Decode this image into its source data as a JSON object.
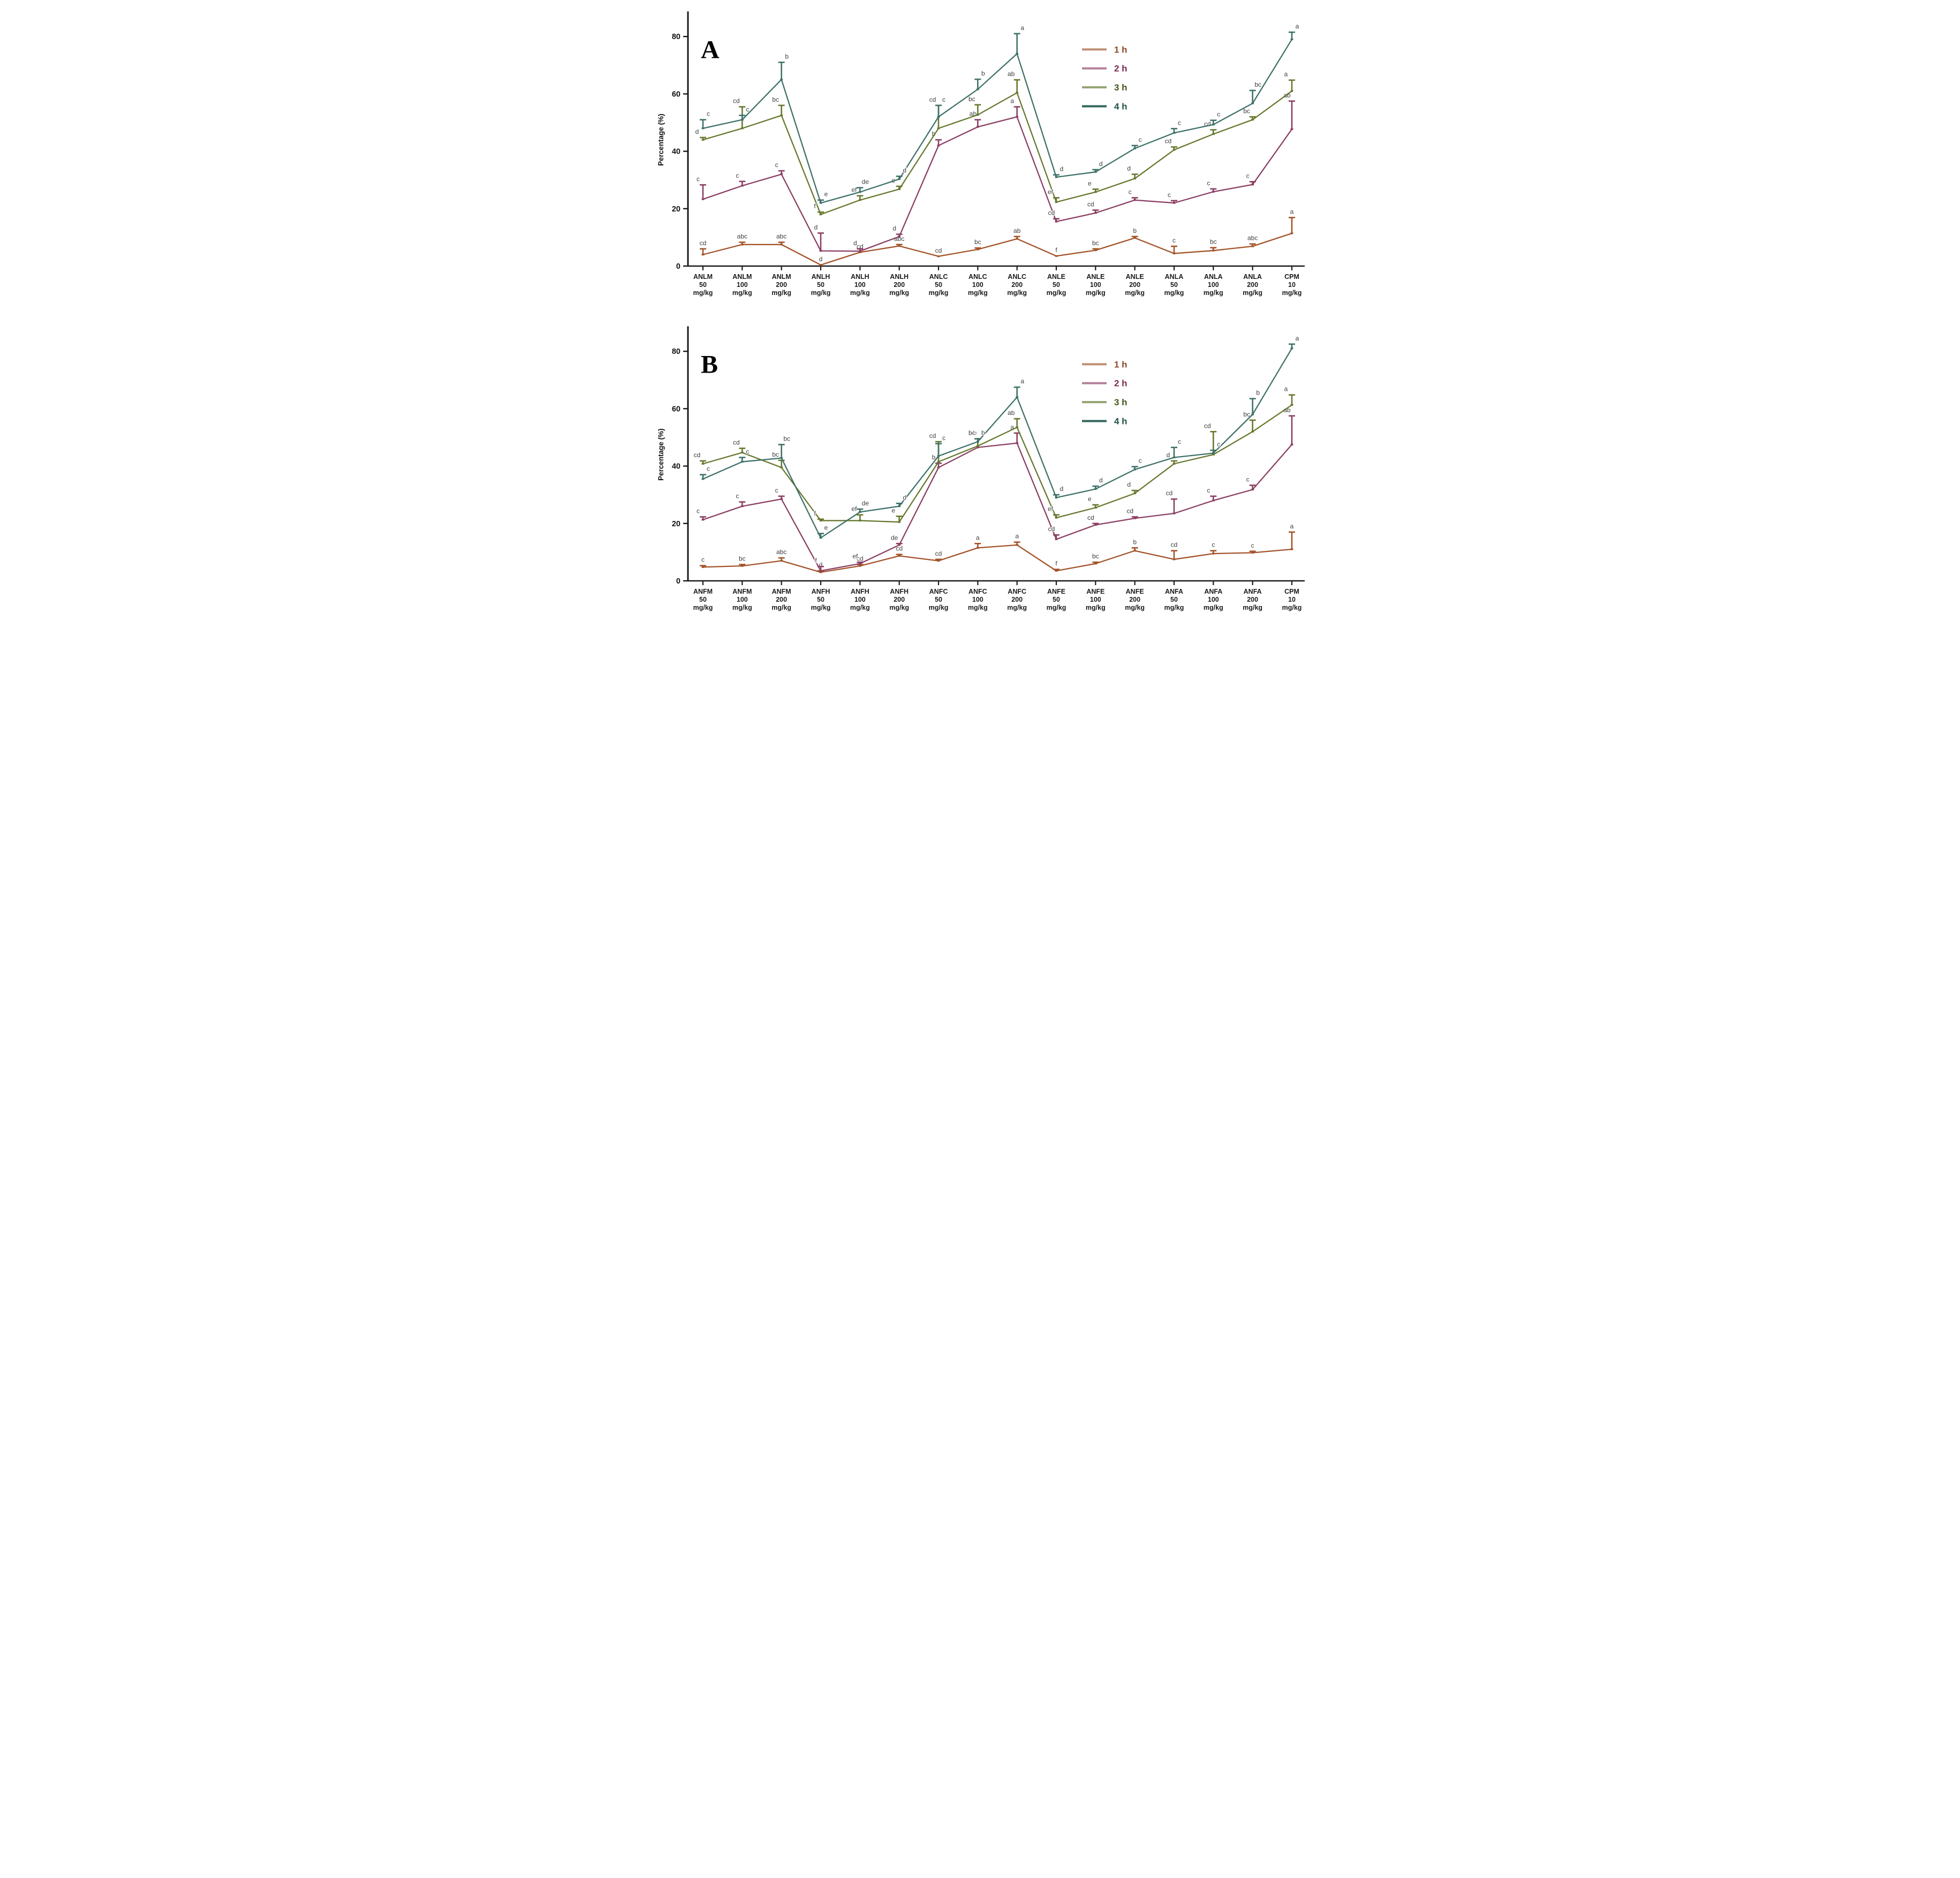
{
  "figure": {
    "background": "#ffffff",
    "letter_color": "#3d3d3d",
    "axis_color": "#1a1a1a"
  },
  "chart_data": [
    {
      "type": "line",
      "panel_label": "A",
      "ylabel": "Percentage (%)",
      "ylim": [
        0,
        88
      ],
      "yticks": [
        0,
        20,
        40,
        60,
        80
      ],
      "grid": false,
      "legend_position": "upper-right-inside",
      "legend": [
        {
          "label": "1 h",
          "swatch_color": "#BE8E72",
          "text_color": "#8C4A2A"
        },
        {
          "label": "2 h",
          "swatch_color": "#B38099",
          "text_color": "#7B2B52"
        },
        {
          "label": "3 h",
          "swatch_color": "#93A371",
          "text_color": "#3F5918"
        },
        {
          "label": "4 h",
          "swatch_color": "#32655C",
          "text_color": "#1F5348"
        }
      ],
      "categories": [
        [
          "ANLM",
          "50",
          "mg/kg"
        ],
        [
          "ANLM",
          "100",
          "mg/kg"
        ],
        [
          "ANLM",
          "200",
          "mg/kg"
        ],
        [
          "ANLH",
          "50",
          "mg/kg"
        ],
        [
          "ANLH",
          "100",
          "mg/kg"
        ],
        [
          "ANLH",
          "200",
          "mg/kg"
        ],
        [
          "ANLC",
          "50",
          "mg/kg"
        ],
        [
          "ANLC",
          "100",
          "mg/kg"
        ],
        [
          "ANLC",
          "200",
          "mg/kg"
        ],
        [
          "ANLE",
          "50",
          "mg/kg"
        ],
        [
          "ANLE",
          "100",
          "mg/kg"
        ],
        [
          "ANLE",
          "200",
          "mg/kg"
        ],
        [
          "ANLA",
          "50",
          "mg/kg"
        ],
        [
          "ANLA",
          "100",
          "mg/kg"
        ],
        [
          "ANLA",
          "200",
          "mg/kg"
        ],
        [
          "CPM",
          "10",
          "mg/kg"
        ]
      ],
      "series": [
        {
          "name": "1 h",
          "color": "#A35329",
          "values": [
            4,
            7.5,
            7.5,
            0.4,
            4.8,
            7,
            3.4,
            5.8,
            9.5,
            3.5,
            5.5,
            9.8,
            4.4,
            5.4,
            6.9,
            11.4
          ],
          "errors": [
            2,
            0.8,
            0.8,
            0,
            0,
            0.5,
            0,
            0.5,
            0.8,
            0,
            0.5,
            0.5,
            2.5,
            1,
            0.8,
            5.5
          ],
          "letters": [
            "cd",
            "abc",
            "abc",
            "d",
            "cd",
            "abc",
            "cd",
            "bc",
            "ab",
            "f",
            "bc",
            "b",
            "c",
            "bc",
            "abc",
            "a"
          ]
        },
        {
          "name": "2 h",
          "color": "#8B3E63",
          "values": [
            23.3,
            28,
            32,
            5.3,
            5.2,
            10.3,
            42,
            48.5,
            52,
            15.5,
            18.5,
            23,
            22,
            25.9,
            28.4,
            47.7
          ],
          "errors": [
            5,
            1.5,
            1.2,
            6.2,
            0.8,
            0.8,
            2,
            2.5,
            3.5,
            1,
            1,
            0.8,
            0.8,
            1,
            1,
            9.8
          ],
          "letters": [
            "c",
            "c",
            "c",
            "d",
            "d",
            "d",
            "b",
            "ab",
            "a",
            "cd",
            "cd",
            "c",
            "c",
            "c",
            "c",
            "ab"
          ]
        },
        {
          "name": "3 h",
          "color": "#66782E",
          "values": [
            44,
            48,
            52.5,
            18,
            23,
            26.8,
            48,
            52.7,
            60.4,
            22.3,
            25.8,
            30.5,
            40.5,
            46,
            51,
            61
          ],
          "errors": [
            0.8,
            7.5,
            3.5,
            0.8,
            1.5,
            1,
            8,
            3.5,
            4.5,
            1.5,
            1,
            1.5,
            1,
            1.5,
            1,
            3.8
          ],
          "letters": [
            "d",
            "cd",
            "bc",
            "f",
            "ef",
            "e",
            "cd",
            "bc",
            "ab",
            "ef",
            "e",
            "d",
            "cd",
            "cd",
            "bc",
            "a"
          ]
        },
        {
          "name": "4 h",
          "color": "#3E7168",
          "values": [
            48,
            51,
            65,
            22,
            25.8,
            30.3,
            52,
            61.6,
            74,
            31,
            32.8,
            41,
            46.4,
            49.3,
            56.7,
            79
          ],
          "errors": [
            3,
            1.5,
            6,
            1,
            1.5,
            1,
            4,
            3.5,
            7,
            0.8,
            0.8,
            1,
            1.5,
            1.5,
            4.5,
            2.5
          ],
          "letters": [
            "c",
            "c",
            "b",
            "e",
            "de",
            "d",
            "c",
            "b",
            "a",
            "d",
            "d",
            "c",
            "c",
            "c",
            "bc",
            "a"
          ]
        }
      ]
    },
    {
      "type": "line",
      "panel_label": "B",
      "ylabel": "Percentage (%)",
      "ylim": [
        0,
        88
      ],
      "yticks": [
        0,
        20,
        40,
        60,
        80
      ],
      "grid": false,
      "legend_position": "upper-right-inside",
      "legend": [
        {
          "label": "1 h",
          "swatch_color": "#BE8E72",
          "text_color": "#8C4A2A"
        },
        {
          "label": "2 h",
          "swatch_color": "#B38099",
          "text_color": "#7B2B52"
        },
        {
          "label": "3 h",
          "swatch_color": "#93A371",
          "text_color": "#3F5918"
        },
        {
          "label": "4 h",
          "swatch_color": "#32655C",
          "text_color": "#1F5348"
        }
      ],
      "categories": [
        [
          "ANFM",
          "50",
          "mg/kg"
        ],
        [
          "ANFM",
          "100",
          "mg/kg"
        ],
        [
          "ANFM",
          "200",
          "mg/kg"
        ],
        [
          "ANFH",
          "50",
          "mg/kg"
        ],
        [
          "ANFH",
          "100",
          "mg/kg"
        ],
        [
          "ANFH",
          "200",
          "mg/kg"
        ],
        [
          "ANFC",
          "50",
          "mg/kg"
        ],
        [
          "ANFC",
          "100",
          "mg/kg"
        ],
        [
          "ANFC",
          "200",
          "mg/kg"
        ],
        [
          "ANFE",
          "50",
          "mg/kg"
        ],
        [
          "ANFE",
          "100",
          "mg/kg"
        ],
        [
          "ANFE",
          "200",
          "mg/kg"
        ],
        [
          "ANFA",
          "50",
          "mg/kg"
        ],
        [
          "ANFA",
          "100",
          "mg/kg"
        ],
        [
          "ANFA",
          "200",
          "mg/kg"
        ],
        [
          "CPM",
          "10",
          "mg/kg"
        ]
      ],
      "series": [
        {
          "name": "1 h",
          "color": "#A35329",
          "values": [
            4.8,
            5.2,
            7,
            3,
            5.2,
            8.7,
            7,
            11.5,
            12.5,
            3.5,
            6,
            10.5,
            7.5,
            9.5,
            9.8,
            11
          ],
          "errors": [
            0.5,
            0.5,
            1,
            0.5,
            0.5,
            0.5,
            0.5,
            1.5,
            1,
            0.5,
            0.5,
            1,
            3,
            1,
            0.5,
            6
          ],
          "letters": [
            "c",
            "bc",
            "abc",
            "d",
            "cd",
            "cd",
            "cd",
            "a",
            "a",
            "f",
            "bc",
            "b",
            "cd",
            "c",
            "c",
            "a"
          ]
        },
        {
          "name": "2 h",
          "color": "#8B3E63",
          "values": [
            21.3,
            26,
            28.5,
            3.5,
            6,
            12.5,
            39.5,
            46.5,
            48,
            14.5,
            19.5,
            21.8,
            23.5,
            28,
            31.8,
            47.5
          ],
          "errors": [
            1,
            1.5,
            1,
            1.5,
            0.5,
            0.5,
            1.5,
            3,
            3.5,
            1.5,
            0.5,
            0.5,
            5,
            1.5,
            1.5,
            10
          ],
          "letters": [
            "c",
            "c",
            "c",
            "f",
            "ef",
            "de",
            "b",
            "ab",
            "a",
            "cd",
            "cd",
            "cd",
            "cd",
            "c",
            "c",
            "ab"
          ]
        },
        {
          "name": "3 h",
          "color": "#66782E",
          "values": [
            40.8,
            44.7,
            39.5,
            21,
            21,
            20.5,
            41.5,
            47,
            53.5,
            22,
            25.5,
            30.5,
            40.8,
            44,
            52,
            61.3
          ],
          "errors": [
            1,
            1.5,
            2.5,
            0.5,
            2,
            2,
            7,
            2.5,
            3,
            1,
            1,
            1,
            1,
            8,
            4,
            3.5
          ],
          "letters": [
            "cd",
            "cd",
            "bc",
            "f",
            "ef",
            "e",
            "cd",
            "bc",
            "ab",
            "ef",
            "e",
            "d",
            "d",
            "cd",
            "bc",
            "a"
          ]
        },
        {
          "name": "4 h",
          "color": "#3E7168",
          "values": [
            35.5,
            41.5,
            42.8,
            15,
            24,
            26,
            43.5,
            48.5,
            64,
            29,
            32,
            38.8,
            43,
            44.5,
            58,
            81
          ],
          "errors": [
            1.5,
            1.5,
            4.7,
            1.5,
            1,
            1,
            4.3,
            1,
            3.5,
            1,
            1,
            1,
            3.5,
            1,
            5.5,
            1.5
          ],
          "letters": [
            "c",
            "c",
            "bc",
            "e",
            "de",
            "d",
            "c",
            "b",
            "a",
            "d",
            "d",
            "c",
            "c",
            "c",
            "b",
            "a"
          ]
        }
      ]
    }
  ]
}
